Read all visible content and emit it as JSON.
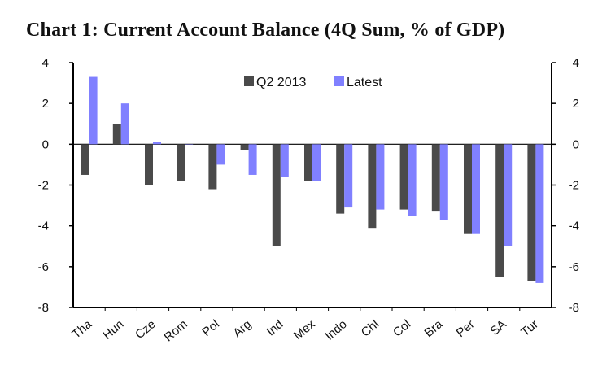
{
  "chart_data": {
    "type": "bar",
    "title": "Chart 1: Current Account Balance (4Q Sum, % of GDP)",
    "categories": [
      "Tha",
      "Hun",
      "Cze",
      "Rom",
      "Pol",
      "Arg",
      "Ind",
      "Mex",
      "Indo",
      "Chl",
      "Col",
      "Bra",
      "Per",
      "SA",
      "Tur"
    ],
    "series": [
      {
        "name": "Q2 2013",
        "color": "#4a4a4a",
        "values": [
          -1.5,
          1.0,
          -2.0,
          -1.8,
          -2.2,
          -0.3,
          -5.0,
          -1.8,
          -3.4,
          -4.1,
          -3.2,
          -3.3,
          -4.4,
          -6.5,
          -6.7
        ]
      },
      {
        "name": "Latest",
        "color": "#8080ff",
        "values": [
          3.3,
          2.0,
          0.1,
          0.0,
          -1.0,
          -1.5,
          -1.6,
          -1.8,
          -3.1,
          -3.2,
          -3.5,
          -3.7,
          -4.4,
          -5.0,
          -6.8
        ]
      }
    ],
    "ylim": [
      -8,
      4
    ],
    "yticks": [
      "4",
      "2",
      "0",
      "-2",
      "-4",
      "-6",
      "-8"
    ],
    "legend_position": "top-center",
    "grid": false,
    "xlabel": "",
    "ylabel": ""
  }
}
